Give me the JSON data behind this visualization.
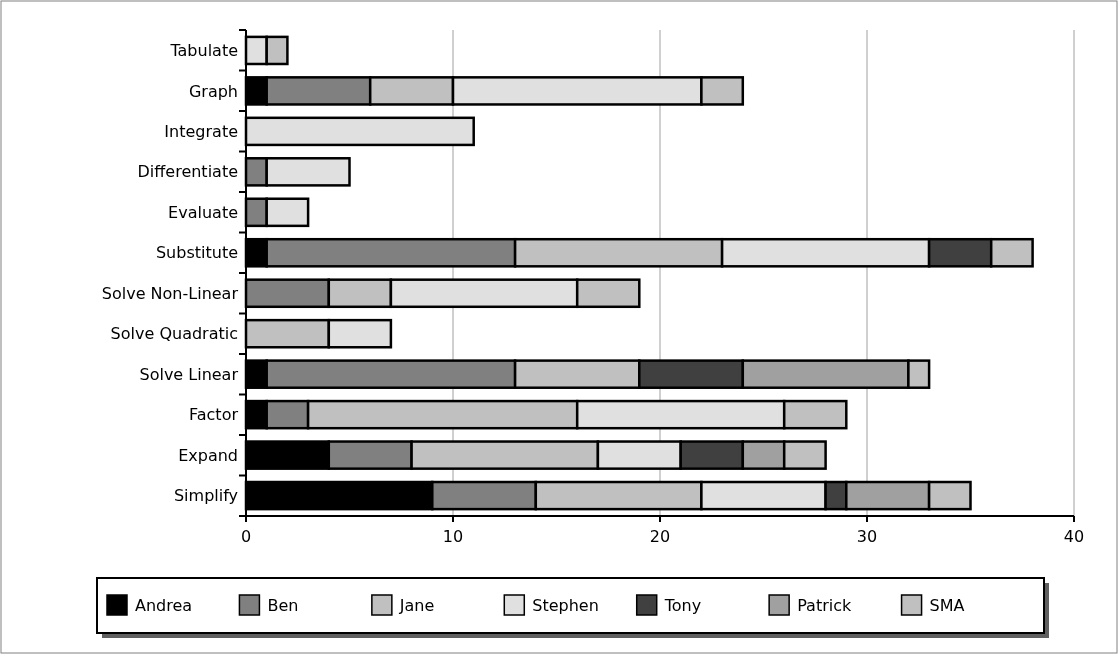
{
  "chart_data": {
    "type": "bar",
    "orientation": "horizontal",
    "stacked": true,
    "categories": [
      "Tabulate",
      "Graph",
      "Integrate",
      "Differentiate",
      "Evaluate",
      "Substitute",
      "Solve Non-Linear",
      "Solve Quadratic",
      "Solve Linear",
      "Factor",
      "Expand",
      "Simplify"
    ],
    "series": [
      {
        "name": "Andrea",
        "color": "#000000",
        "values": [
          null,
          1,
          null,
          null,
          null,
          1,
          null,
          null,
          1,
          1,
          4,
          9
        ]
      },
      {
        "name": "Ben",
        "color": "#808080",
        "values": [
          null,
          5,
          null,
          1,
          1,
          12,
          4,
          null,
          12,
          2,
          4,
          5
        ]
      },
      {
        "name": "Jane",
        "color": "#c0c0c0",
        "values": [
          null,
          4,
          null,
          null,
          null,
          10,
          3,
          4,
          6,
          13,
          9,
          8
        ]
      },
      {
        "name": "Stephen",
        "color": "#e0e0e0",
        "values": [
          1,
          12,
          11,
          4,
          2,
          10,
          9,
          3,
          null,
          10,
          4,
          6
        ]
      },
      {
        "name": "Tony",
        "color": "#404040",
        "values": [
          null,
          null,
          null,
          null,
          null,
          3,
          null,
          null,
          5,
          null,
          3,
          1
        ]
      },
      {
        "name": "Patrick",
        "color": "#a0a0a0",
        "values": [
          null,
          null,
          null,
          null,
          null,
          null,
          null,
          null,
          8,
          null,
          2,
          4
        ]
      },
      {
        "name": "SMA",
        "color": "#c0c0c0",
        "values": [
          1,
          2,
          null,
          null,
          null,
          2,
          3,
          null,
          1,
          3,
          2,
          2
        ]
      }
    ],
    "xlim": [
      0,
      40
    ],
    "xticks": [
      0,
      10,
      20,
      30,
      40
    ],
    "grid": "x",
    "legend": "bottom"
  }
}
